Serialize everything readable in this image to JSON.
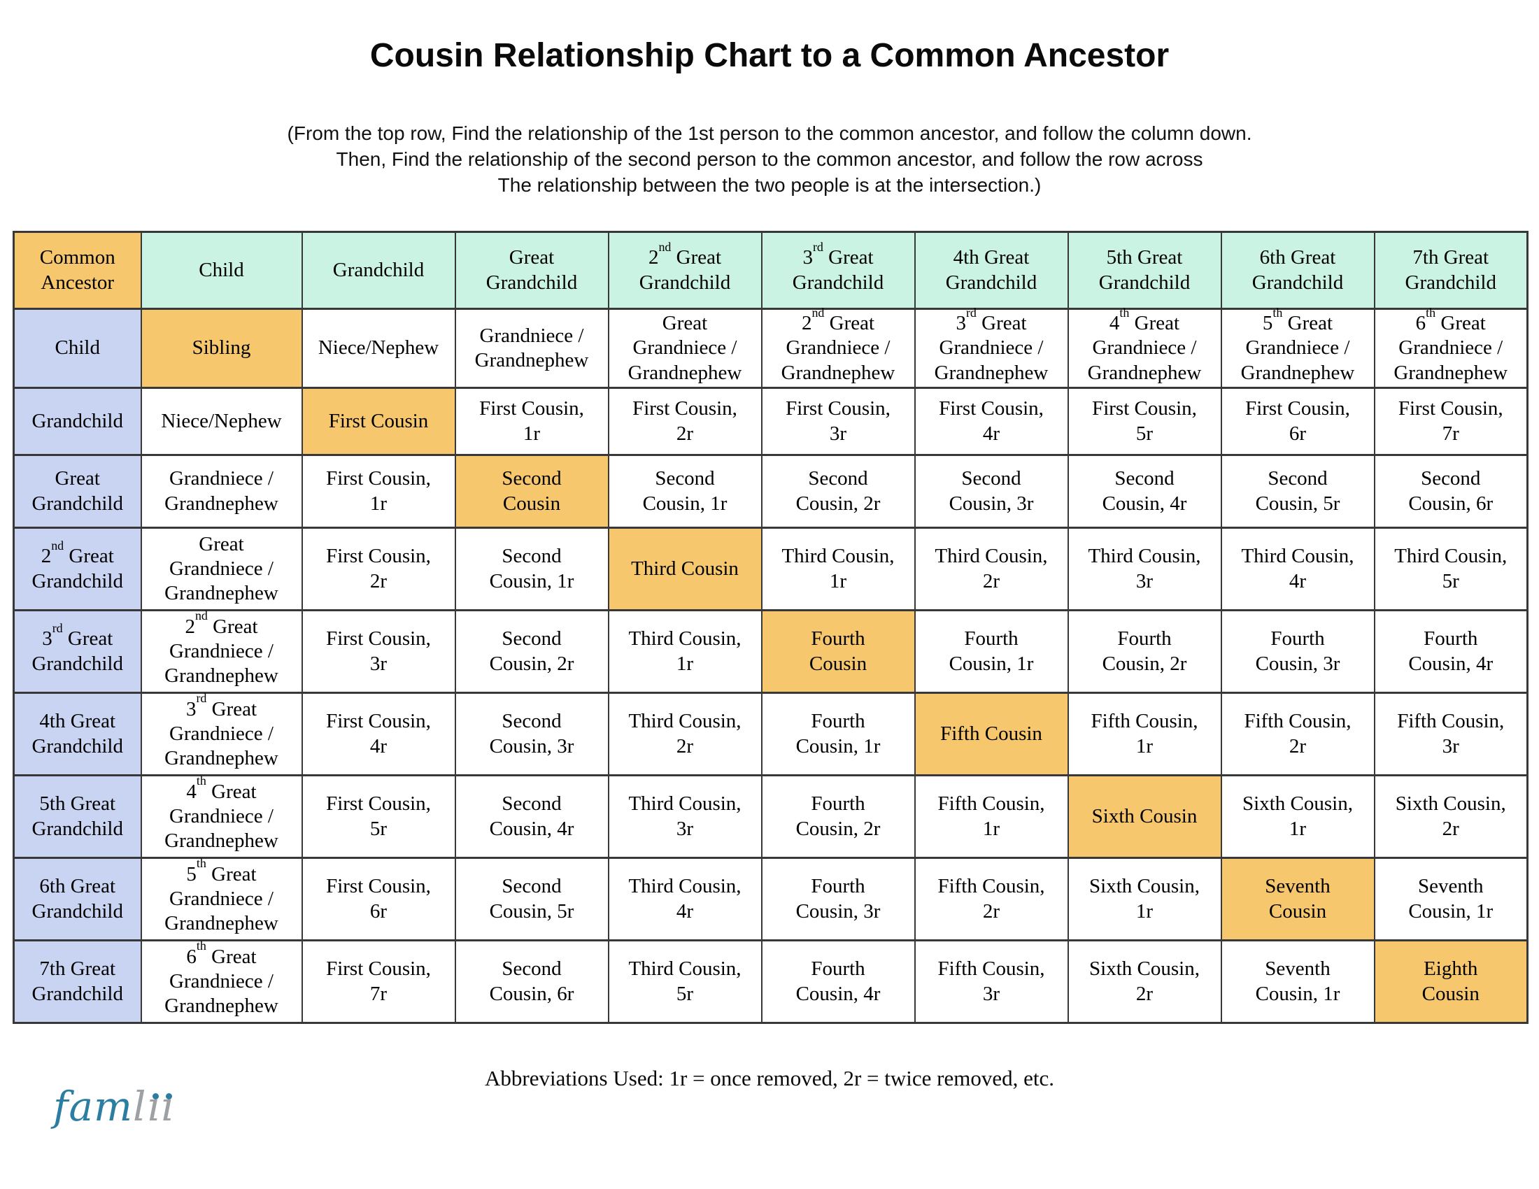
{
  "title": "Cousin Relationship Chart to a Common Ancestor",
  "subtitle_lines": [
    "(From the top row, Find the relationship of the 1st person to the common ancestor, and follow the column down.",
    "Then, Find the relationship of the second person to the common ancestor, and follow the row across",
    "The relationship between the two people is at the intersection.)"
  ],
  "table": {
    "corner_label": "Common\nAncestor",
    "column_headers": [
      "Child",
      "Grandchild",
      "Great\nGrandchild",
      "2^nd^ Great\nGrandchild",
      "3^rd^ Great\nGrandchild",
      "4th Great\nGrandchild",
      "5th Great\nGrandchild",
      "6th Great\nGrandchild",
      "7th Great\nGrandchild"
    ],
    "row_headers": [
      "Child",
      "Grandchild",
      "Great\nGrandchild",
      "2^nd^ Great\nGrandchild",
      "3^rd^ Great\nGrandchild",
      "4th Great\nGrandchild",
      "5th Great\nGrandchild",
      "6th Great\nGrandchild",
      "7th Great\nGrandchild"
    ],
    "body": [
      [
        "Sibling",
        "Niece/Nephew",
        "Grandniece /\nGrandnephew",
        "Great\nGrandniece /\nGrandnephew",
        "2^nd^ Great\nGrandniece /\nGrandnephew",
        "3^rd^ Great\nGrandniece /\nGrandnephew",
        "4^th^ Great\nGrandniece /\nGrandnephew",
        "5^th^ Great\nGrandniece /\nGrandnephew",
        "6^th^ Great\nGrandniece /\nGrandnephew"
      ],
      [
        "Niece/Nephew",
        "First Cousin",
        "First Cousin,\n1r",
        "First Cousin,\n2r",
        "First Cousin,\n3r",
        "First Cousin,\n4r",
        "First Cousin,\n5r",
        "First Cousin,\n6r",
        "First Cousin,\n7r"
      ],
      [
        "Grandniece /\nGrandnephew",
        "First Cousin,\n1r",
        "Second\nCousin",
        "Second\nCousin, 1r",
        "Second\nCousin, 2r",
        "Second\nCousin, 3r",
        "Second\nCousin, 4r",
        "Second\nCousin, 5r",
        "Second\nCousin, 6r"
      ],
      [
        "Great\nGrandniece /\nGrandnephew",
        "First Cousin,\n2r",
        "Second\nCousin, 1r",
        "Third Cousin",
        "Third Cousin,\n1r",
        "Third Cousin,\n2r",
        "Third Cousin,\n3r",
        "Third Cousin,\n4r",
        "Third Cousin,\n5r"
      ],
      [
        "2^nd^ Great\nGrandniece /\nGrandnephew",
        "First Cousin,\n3r",
        "Second\nCousin, 2r",
        "Third Cousin,\n1r",
        "Fourth\nCousin",
        "Fourth\nCousin, 1r",
        "Fourth\nCousin, 2r",
        "Fourth\nCousin, 3r",
        "Fourth\nCousin, 4r"
      ],
      [
        "3^rd^ Great\nGrandniece /\nGrandnephew",
        "First Cousin,\n4r",
        "Second\nCousin, 3r",
        "Third Cousin,\n2r",
        "Fourth\nCousin, 1r",
        "Fifth Cousin",
        "Fifth Cousin,\n1r",
        "Fifth Cousin,\n2r",
        "Fifth Cousin,\n3r"
      ],
      [
        "4^th^ Great\nGrandniece /\nGrandnephew",
        "First Cousin,\n5r",
        "Second\nCousin, 4r",
        "Third Cousin,\n3r",
        "Fourth\nCousin, 2r",
        "Fifth Cousin,\n1r",
        "Sixth Cousin",
        "Sixth Cousin,\n1r",
        "Sixth Cousin,\n2r"
      ],
      [
        "5^th^ Great\nGrandniece /\nGrandnephew",
        "First Cousin,\n6r",
        "Second\nCousin, 5r",
        "Third Cousin,\n4r",
        "Fourth\nCousin, 3r",
        "Fifth Cousin,\n2r",
        "Sixth Cousin,\n1r",
        "Seventh\nCousin",
        "Seventh\nCousin, 1r"
      ],
      [
        "6^th^ Great\nGrandniece /\nGrandnephew",
        "First Cousin,\n7r",
        "Second\nCousin, 6r",
        "Third Cousin,\n5r",
        "Fourth\nCousin, 4r",
        "Fifth Cousin,\n3r",
        "Sixth Cousin,\n2r",
        "Seventh\nCousin, 1r",
        "Eighth\nCousin"
      ]
    ]
  },
  "footer": "Abbreviations Used: 1r = once removed, 2r = twice removed, etc.",
  "logo": {
    "blue_part": "fam",
    "gray_l": "l",
    "gray_ii_dotless": "ıı"
  },
  "colors": {
    "column_header_green": "#caf3e3",
    "row_header_blue": "#c9d3f2",
    "diagonal_orange": "#f6c76c",
    "border": "#383838",
    "logo_blue": "#2b7ea1",
    "logo_gray": "#9da1a4"
  }
}
